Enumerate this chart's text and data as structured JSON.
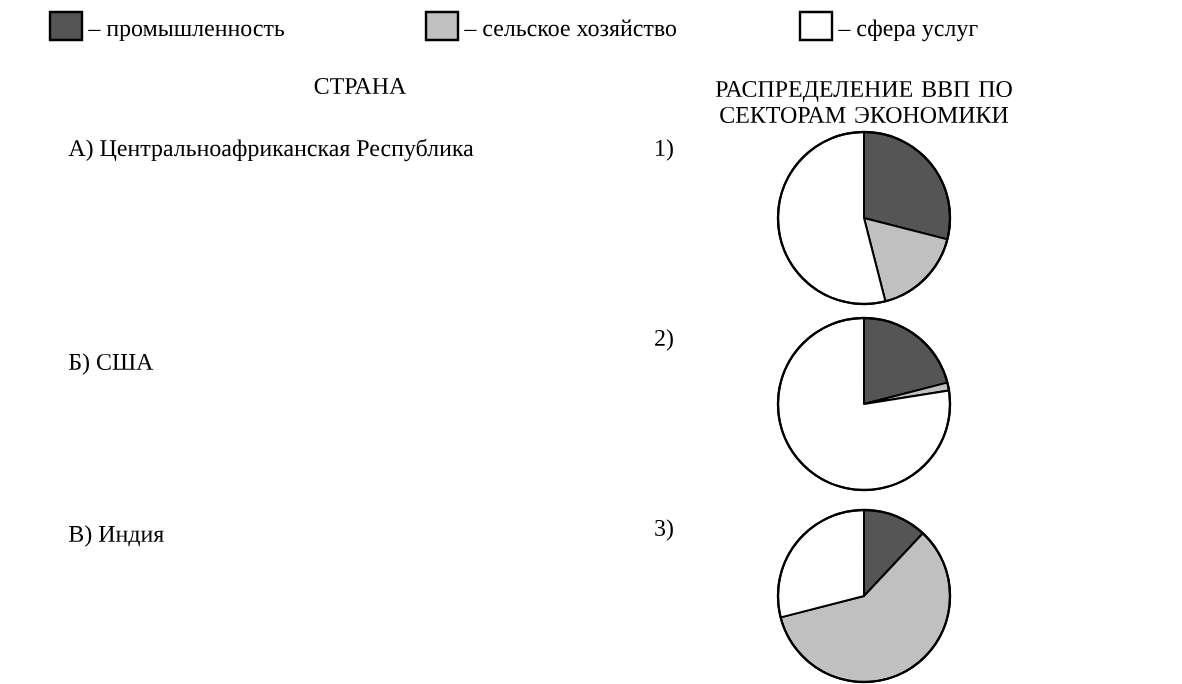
{
  "chart_data": [
    {
      "type": "other",
      "title": "СТРАНА",
      "subtitle": "РАСПРЕДЕЛЕНИЕ ВВП ПО СЕКТОРАМ ЭКОНОМИКИ",
      "annotations": [
        "А) Центральноафриканская Республика",
        "Б) США",
        "В) Индия"
      ]
    },
    {
      "type": "pie",
      "title": "1)",
      "categories": [
        "– промышленность",
        "– сельское хозяйство",
        "– сфера услуг"
      ],
      "values": [
        29,
        17,
        54
      ],
      "colors": [
        "#555555",
        "#c0c0c0",
        "#ffffff"
      ],
      "legend": "top"
    },
    {
      "type": "pie",
      "title": "2)",
      "categories": [
        null,
        null,
        null
      ],
      "values": [
        21,
        1.5,
        77.5
      ],
      "colors": [
        "#555555",
        "#c0c0c0",
        "#ffffff"
      ]
    },
    {
      "type": "pie",
      "title": "3)",
      "categories": [
        null,
        null,
        null
      ],
      "values": [
        12,
        59,
        29
      ],
      "colors": [
        "#555555",
        "#c0c0c0",
        "#ffffff"
      ]
    }
  ]
}
